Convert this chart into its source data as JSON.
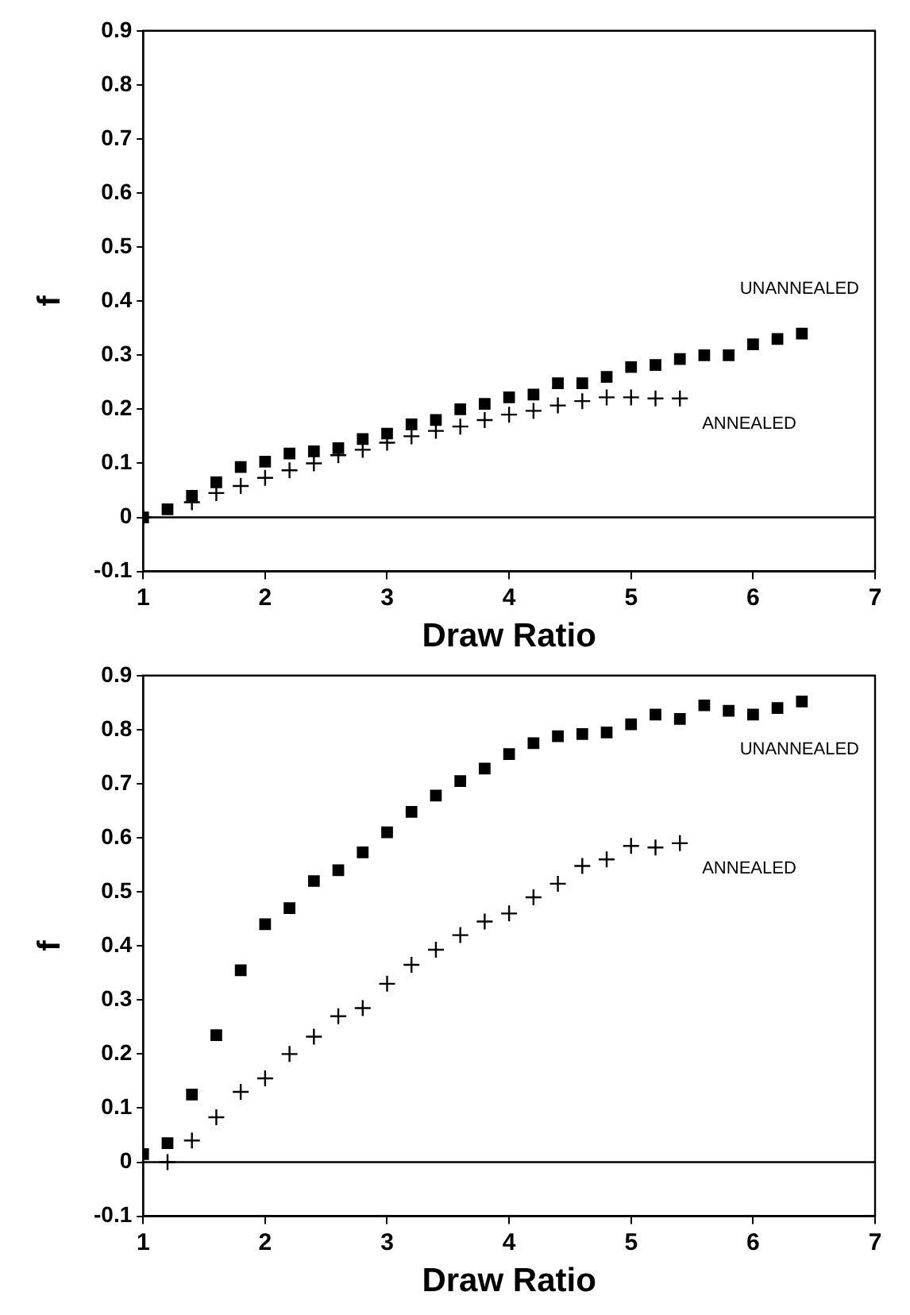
{
  "chart_data": [
    {
      "type": "scatter",
      "xlabel": "Draw Ratio",
      "ylabel": "f",
      "xlim": [
        1,
        7
      ],
      "xticks": [
        1,
        2,
        3,
        4,
        5,
        6,
        7
      ],
      "ylim": [
        -0.1,
        0.9
      ],
      "yticks": [
        -0.1,
        0,
        0.1,
        0.2,
        0.3,
        0.4,
        0.5,
        0.6,
        0.7,
        0.8,
        0.9
      ],
      "grid": false,
      "legend": false,
      "ref_lines": [
        {
          "axis": "y",
          "value": 0,
          "color": "#000000"
        }
      ],
      "series": [
        {
          "name": "UNANNEALED",
          "color": "#000000",
          "marker": "square",
          "x": [
            1,
            1.2,
            1.4,
            1.6,
            1.8,
            2,
            2.2,
            2.4,
            2.6,
            2.8,
            3,
            3.2,
            3.4,
            3.6,
            3.8,
            4,
            4.2,
            4.4,
            4.6,
            4.8,
            5,
            5.2,
            5.4,
            5.6,
            5.8,
            6,
            6.2,
            6.4
          ],
          "values": [
            0,
            0.015,
            0.04,
            0.065,
            0.093,
            0.103,
            0.118,
            0.122,
            0.128,
            0.145,
            0.155,
            0.172,
            0.18,
            0.2,
            0.21,
            0.222,
            0.227,
            0.248,
            0.248,
            0.26,
            0.278,
            0.282,
            0.293,
            0.3,
            0.3,
            0.32,
            0.33,
            0.34
          ]
        },
        {
          "name": "ANNEALED",
          "color": "#000000",
          "marker": "cross",
          "x": [
            1,
            1.2,
            1.4,
            1.6,
            1.8,
            2,
            2.2,
            2.4,
            2.6,
            2.8,
            3,
            3.2,
            3.4,
            3.6,
            3.8,
            4,
            4.2,
            4.4,
            4.6,
            4.8,
            5,
            5.2,
            5.4
          ],
          "values": [
            0,
            null,
            0.028,
            0.045,
            0.058,
            0.073,
            0.087,
            0.1,
            0.115,
            0.125,
            0.138,
            0.15,
            0.16,
            0.168,
            0.18,
            0.19,
            0.197,
            0.207,
            0.215,
            0.222,
            0.222,
            0.22,
            0.22
          ]
        }
      ]
    },
    {
      "type": "scatter",
      "xlabel": "Draw Ratio",
      "ylabel": "f",
      "xlim": [
        1,
        7
      ],
      "xticks": [
        1,
        2,
        3,
        4,
        5,
        6,
        7
      ],
      "ylim": [
        -0.1,
        0.9
      ],
      "yticks": [
        -0.1,
        0,
        0.1,
        0.2,
        0.3,
        0.4,
        0.5,
        0.6,
        0.7,
        0.8,
        0.9
      ],
      "grid": false,
      "legend": false,
      "ref_lines": [
        {
          "axis": "y",
          "value": 0,
          "color": "#000000"
        }
      ],
      "series": [
        {
          "name": "UNANNEALED",
          "color": "#000000",
          "marker": "square",
          "x": [
            1,
            1.2,
            1.4,
            1.6,
            1.8,
            2,
            2.2,
            2.4,
            2.6,
            2.8,
            3,
            3.2,
            3.4,
            3.6,
            3.8,
            4,
            4.2,
            4.4,
            4.6,
            4.8,
            5,
            5.2,
            5.4,
            5.6,
            5.8,
            6,
            6.2,
            6.4
          ],
          "values": [
            0.015,
            0.035,
            0.125,
            0.235,
            0.355,
            0.44,
            0.47,
            0.52,
            0.54,
            0.573,
            0.61,
            0.648,
            0.678,
            0.705,
            0.728,
            0.755,
            0.775,
            0.788,
            0.792,
            0.795,
            0.81,
            0.828,
            0.82,
            0.845,
            0.835,
            0.828,
            0.84,
            0.852
          ]
        },
        {
          "name": "ANNEALED",
          "color": "#000000",
          "marker": "cross",
          "x": [
            1.2,
            1.4,
            1.6,
            1.8,
            2,
            2.2,
            2.4,
            2.6,
            2.8,
            3,
            3.2,
            3.4,
            3.6,
            3.8,
            4,
            4.2,
            4.4,
            4.6,
            4.8,
            5,
            5.2,
            5.4
          ],
          "values": [
            0,
            0.04,
            0.083,
            0.13,
            0.155,
            0.2,
            0.232,
            0.27,
            0.285,
            0.33,
            0.365,
            0.393,
            0.42,
            0.445,
            0.46,
            0.49,
            0.515,
            0.548,
            0.56,
            0.585,
            0.582,
            0.59
          ]
        }
      ]
    }
  ]
}
